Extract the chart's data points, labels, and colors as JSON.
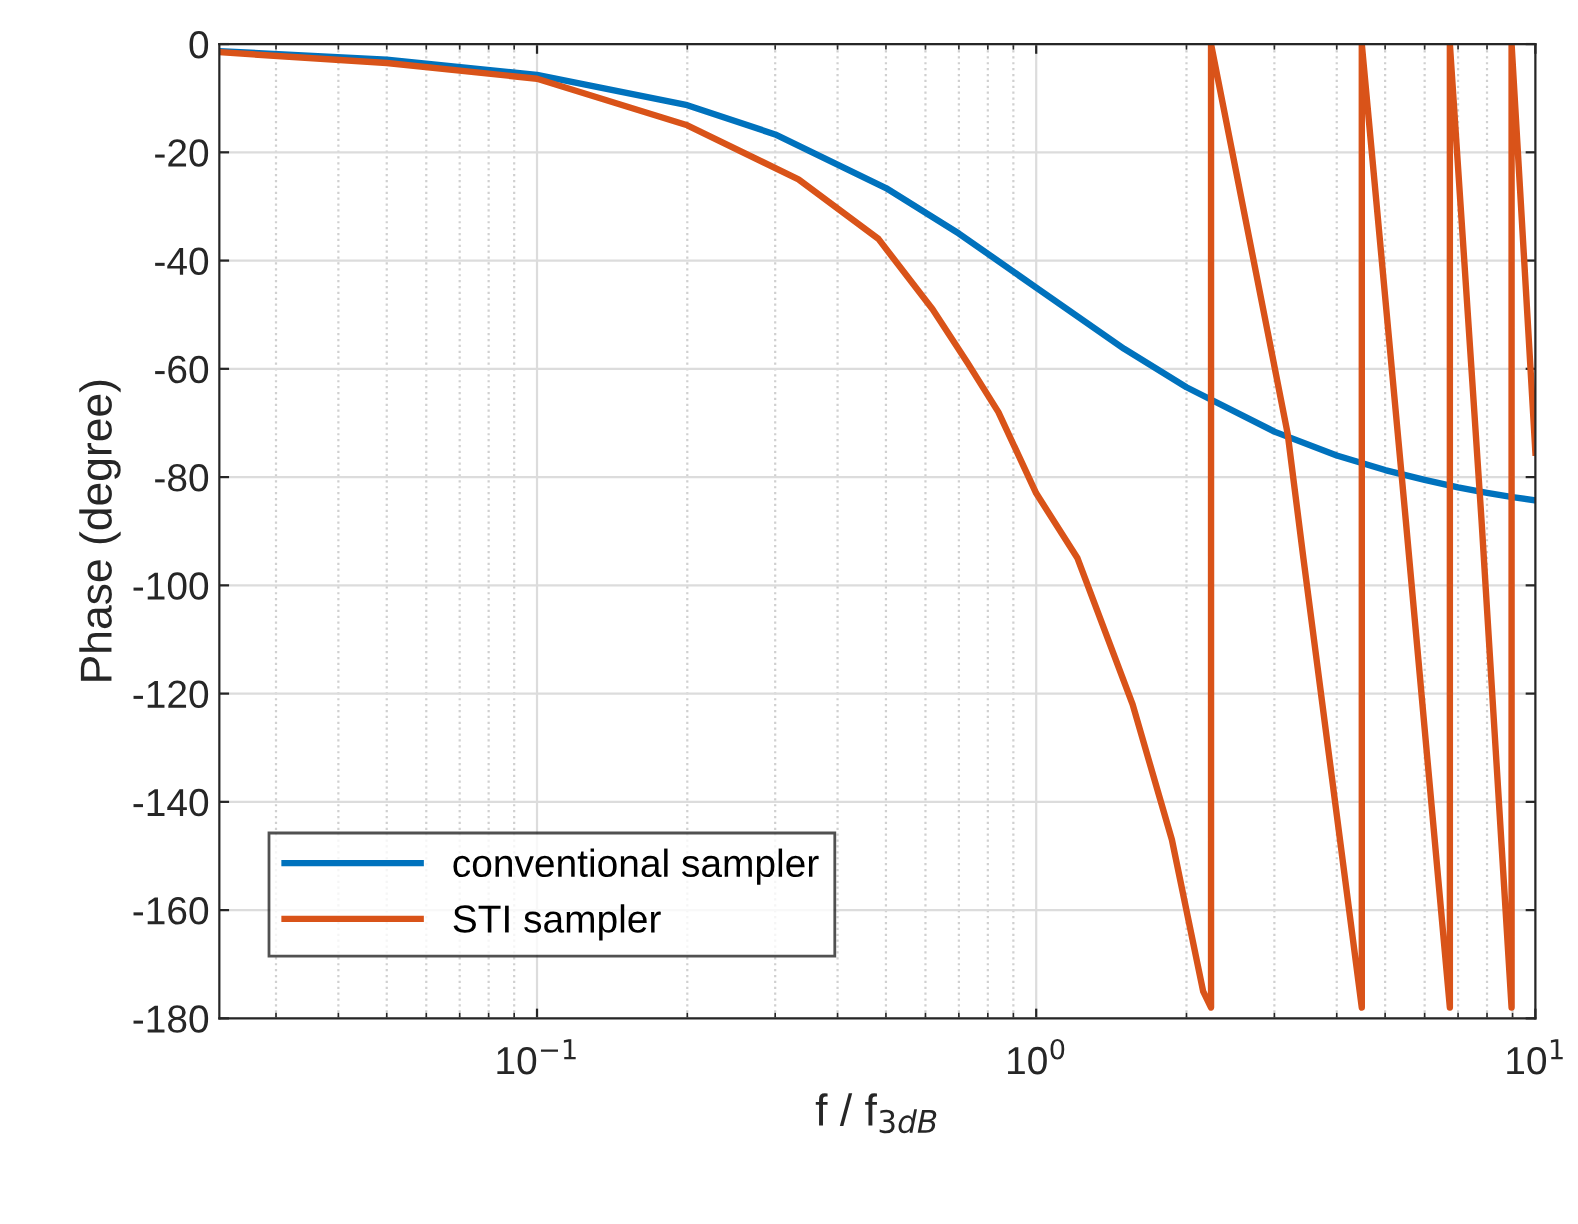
{
  "chart_data": {
    "type": "line",
    "xlabel": "f / f$_{3dB}$",
    "ylabel": "Phase (degree)",
    "log": "x",
    "xlim": [
      0.0231,
      10
    ],
    "ylim": [
      -180,
      0
    ],
    "xticks": [
      {
        "value": 0.1,
        "label": "10$^{−1}$"
      },
      {
        "value": 1,
        "label": "10$^{0}$"
      },
      {
        "value": 10,
        "label": "10$^{1}$"
      }
    ],
    "yticks": [
      -180,
      -160,
      -140,
      -120,
      -100,
      -80,
      -60,
      -40,
      -20,
      0
    ],
    "grid": true,
    "legend": "bottom left",
    "line_style": "solid",
    "marker": "none",
    "series": [
      {
        "name": "conventional sampler",
        "color": "#0072bd",
        "x": [
          0.0231,
          0.05,
          0.1,
          0.2,
          0.3,
          0.5,
          0.7,
          1,
          1.5,
          2,
          3,
          4,
          5,
          6,
          7,
          8,
          9,
          10
        ],
        "values": [
          -1.3,
          -2.9,
          -5.7,
          -11.3,
          -16.7,
          -26.6,
          -35,
          -45,
          -56.3,
          -63.4,
          -71.6,
          -76,
          -78.7,
          -80.5,
          -81.9,
          -82.9,
          -83.7,
          -84.3
        ]
      },
      {
        "name": "STI sampler",
        "color": "#d95319",
        "x": [
          0.0231,
          0.05,
          0.1,
          0.2,
          0.334,
          0.483,
          0.62,
          0.73,
          0.84,
          1,
          1.21,
          1.56,
          1.87,
          2.16,
          2.24,
          2.24,
          3.19,
          3.43,
          4.49,
          4.49,
          5.5,
          6.74,
          6.74,
          7.8,
          8.96,
          8.96,
          10
        ],
        "values": [
          -1.5,
          -3.5,
          -6.4,
          -15,
          -25,
          -36,
          -49,
          -59,
          -68,
          -83,
          -95,
          -122,
          -147,
          -175,
          -178,
          0,
          -72,
          -95,
          -178,
          0,
          -88,
          -178,
          0,
          -88,
          -178,
          0,
          -75.5
        ]
      }
    ]
  }
}
